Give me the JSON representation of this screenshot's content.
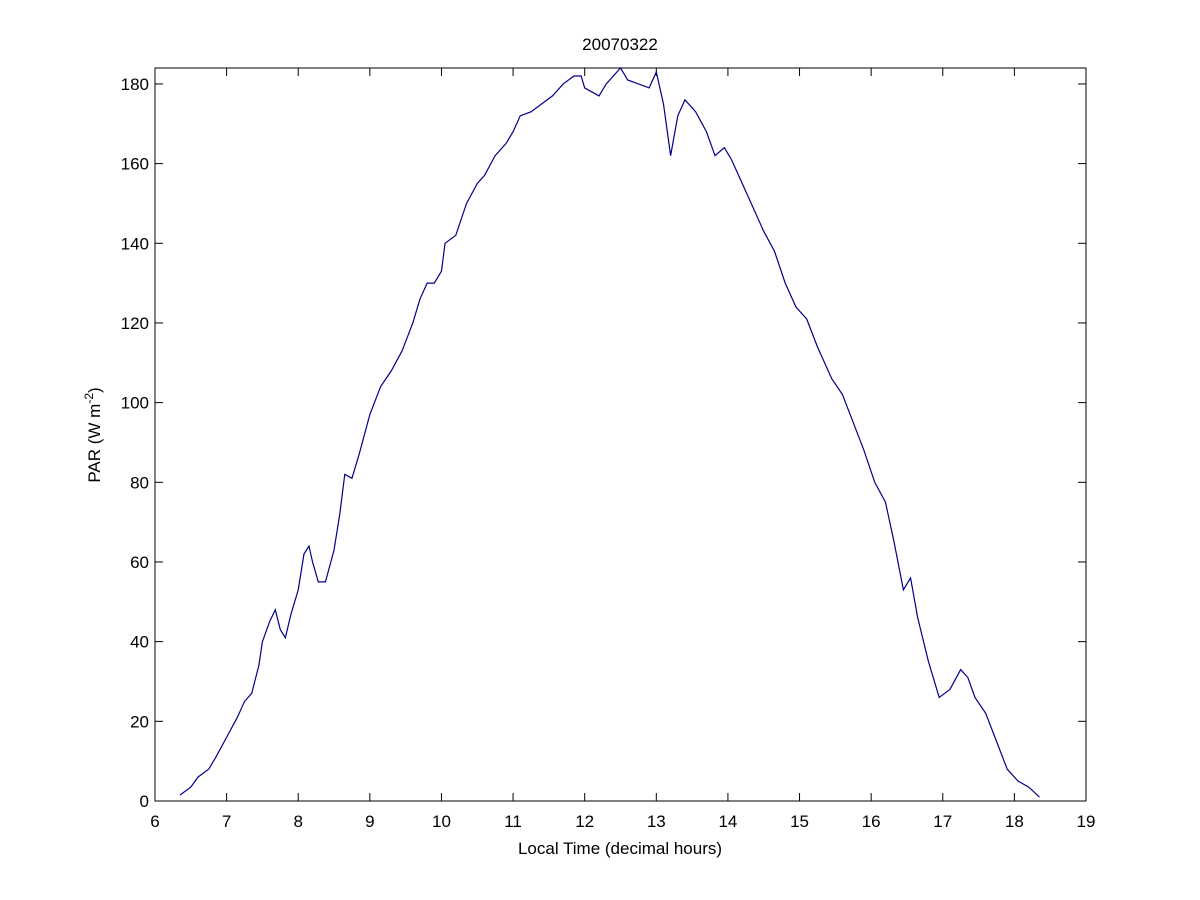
{
  "chart_data": {
    "type": "line",
    "title": "20070322",
    "xlabel": "Local Time (decimal hours)",
    "ylabel": {
      "text": "PAR (W m",
      "superscript": "-2",
      "suffix": ")"
    },
    "xlim": [
      6,
      19
    ],
    "xticks": [
      6,
      7,
      8,
      9,
      10,
      11,
      12,
      13,
      14,
      15,
      16,
      17,
      18,
      19
    ],
    "ylim": [
      0,
      184
    ],
    "yticks": [
      0,
      20,
      40,
      60,
      80,
      100,
      120,
      140,
      160,
      180
    ],
    "series": [
      {
        "color": "#00008b",
        "x": [
          6.35,
          6.5,
          6.6,
          6.75,
          6.85,
          7.0,
          7.15,
          7.25,
          7.35,
          7.45,
          7.5,
          7.6,
          7.68,
          7.75,
          7.82,
          7.9,
          8.0,
          8.08,
          8.15,
          8.2,
          8.28,
          8.38,
          8.5,
          8.58,
          8.65,
          8.75,
          8.85,
          9.0,
          9.15,
          9.3,
          9.45,
          9.6,
          9.7,
          9.8,
          9.9,
          10.0,
          10.05,
          10.2,
          10.35,
          10.5,
          10.6,
          10.75,
          10.9,
          11.0,
          11.1,
          11.25,
          11.4,
          11.55,
          11.7,
          11.85,
          11.95,
          12.0,
          12.2,
          12.3,
          12.4,
          12.5,
          12.6,
          12.75,
          12.9,
          13.0,
          13.1,
          13.2,
          13.3,
          13.4,
          13.55,
          13.7,
          13.82,
          13.95,
          14.05,
          14.2,
          14.35,
          14.5,
          14.65,
          14.8,
          14.95,
          15.1,
          15.25,
          15.45,
          15.6,
          15.75,
          15.9,
          16.05,
          16.2,
          16.32,
          16.45,
          16.55,
          16.65,
          16.8,
          16.95,
          17.1,
          17.25,
          17.35,
          17.45,
          17.6,
          17.75,
          17.9,
          18.05,
          18.2,
          18.35
        ],
        "values": [
          1.5,
          3.5,
          6,
          8,
          11,
          16,
          21,
          25,
          27,
          34,
          40,
          45,
          48,
          43,
          41,
          47,
          53,
          62,
          64,
          60,
          55,
          55,
          63,
          72,
          82,
          81,
          87,
          97,
          104,
          108,
          113,
          120,
          126,
          130,
          130,
          133,
          140,
          142,
          150,
          155,
          157,
          162,
          165,
          168,
          172,
          173,
          175,
          177,
          180,
          182,
          182,
          179,
          177,
          180,
          182,
          184,
          181,
          180,
          179,
          183,
          175,
          162,
          172,
          176,
          173,
          168,
          162,
          164,
          161,
          155,
          149,
          143,
          138,
          130,
          124,
          121,
          114,
          106,
          102,
          95,
          88,
          80,
          75,
          65,
          53,
          56,
          46,
          35,
          26,
          28,
          33,
          31,
          26,
          22,
          15,
          8,
          5,
          3.5,
          1
        ]
      }
    ]
  }
}
